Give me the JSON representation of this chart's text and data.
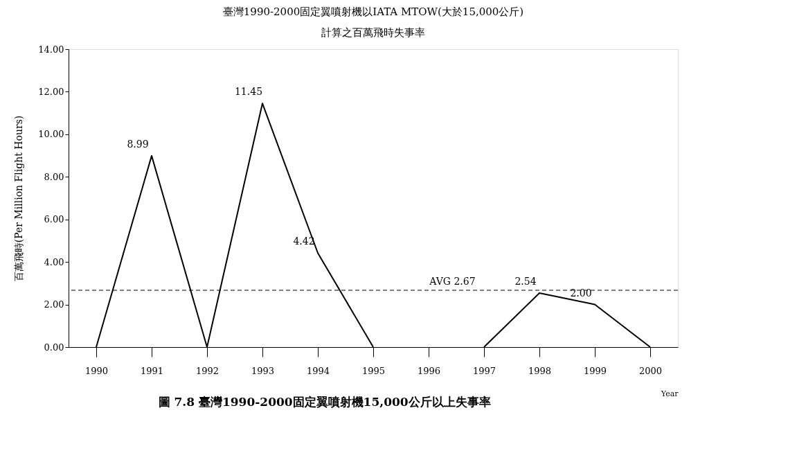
{
  "chart_data": {
    "type": "line",
    "title": [
      "臺灣1990-2000固定翼噴射機以IATA MTOW(大於15,000公斤)",
      "計算之百萬飛時失事率"
    ],
    "xlabel": "Year",
    "ylabel": "百萬飛時(Per Million Flight Hours)",
    "categories": [
      "1990",
      "1991",
      "1992",
      "1993",
      "1994",
      "1995",
      "1996",
      "1997",
      "1998",
      "1999",
      "2000"
    ],
    "series": [
      {
        "color": "#000000",
        "values": [
          0,
          8.99,
          0,
          11.45,
          4.42,
          0,
          null,
          0,
          2.54,
          2.0,
          0
        ],
        "value_labels": [
          null,
          "8.99",
          null,
          "11.45",
          "4.42",
          null,
          null,
          null,
          "2.54",
          "2.00",
          null
        ]
      }
    ],
    "ylim": [
      0,
      14
    ],
    "yticks": [
      {
        "value": 0,
        "label": "0.00"
      },
      {
        "value": 2,
        "label": "2.00"
      },
      {
        "value": 4,
        "label": "4.00"
      },
      {
        "value": 6,
        "label": "6.00"
      },
      {
        "value": 8,
        "label": "8.00"
      },
      {
        "value": 10,
        "label": "10.00"
      },
      {
        "value": 12,
        "label": "12.00"
      },
      {
        "value": 14,
        "label": "14.00"
      }
    ],
    "ref_lines": [
      {
        "axis": "y",
        "value": 2.67,
        "label": "AVG 2.67",
        "color": "#000000",
        "line_style": "dashed"
      }
    ],
    "annotations": [
      "圖 7.8 臺灣1990-2000固定翼噴射機15,000公斤以上失事率"
    ],
    "grid": false,
    "marker": "none",
    "line_style": "solid"
  }
}
